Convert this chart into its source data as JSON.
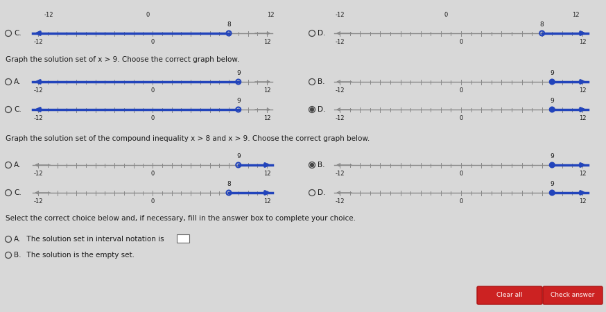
{
  "bg_color": "#d8d8d8",
  "line_color": "#2244bb",
  "axis_color": "#888888",
  "text_color": "#1a1a1a",
  "radio_color": "#444444",
  "font_small": 6.5,
  "font_med": 7.5,
  "font_q": 7.5,
  "question1": "Graph the solution set of x > 9. Choose the correct graph below.",
  "question2": "Graph the solution set of the compound inequality x > 8 and x > 9. Choose the correct graph below.",
  "question3_text": "Select the correct choice below and, if necessary, fill in the answer box to complete your choice.",
  "q3_A": "The solution set in interval notation is",
  "q3_B": "The solution is the empty set.",
  "row0_C": {
    "point": 8,
    "open": true,
    "direction": "left",
    "checked": false
  },
  "row0_D": {
    "point": 8,
    "open": true,
    "direction": "right",
    "checked": false
  },
  "q1_A": {
    "point": 9,
    "open": true,
    "direction": "left",
    "checked": false
  },
  "q1_B": {
    "point": 9,
    "open": false,
    "direction": "right",
    "checked": false
  },
  "q1_C": {
    "point": 9,
    "open": true,
    "direction": "left",
    "checked": false
  },
  "q1_D": {
    "point": 9,
    "open": false,
    "direction": "right",
    "checked": true
  },
  "q2_A": {
    "point": 9,
    "open": true,
    "direction": "right",
    "checked": false
  },
  "q2_B": {
    "point": 9,
    "open": false,
    "direction": "right",
    "checked": true
  },
  "q2_C": {
    "point": 8,
    "open": true,
    "direction": "right",
    "checked": false
  },
  "q2_D": {
    "point": 9,
    "open": false,
    "direction": "right",
    "checked": false
  }
}
